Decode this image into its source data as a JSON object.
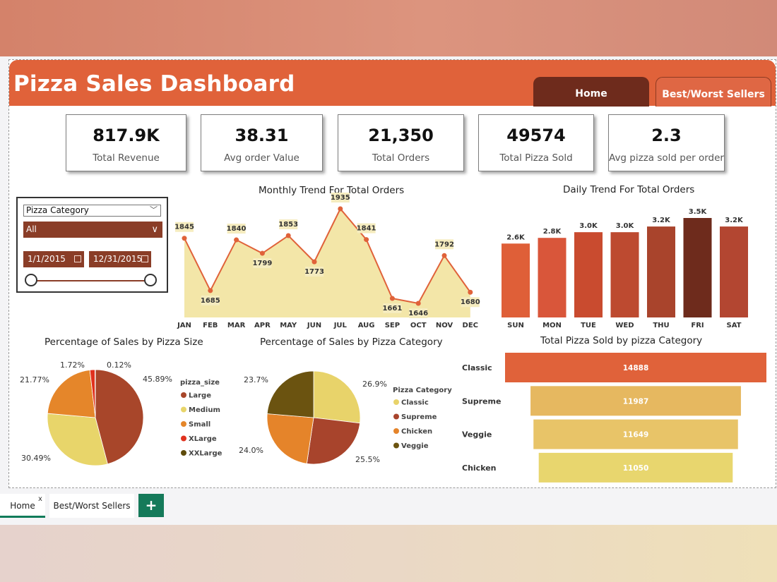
{
  "header": {
    "title": "Pizza Sales Dashboard",
    "nav": [
      {
        "label": "Home"
      },
      {
        "label": "Best/Worst Sellers"
      }
    ]
  },
  "kpis": [
    {
      "value": "817.9K",
      "label": "Total Revenue"
    },
    {
      "value": "38.31",
      "label": "Avg order Value"
    },
    {
      "value": "21,350",
      "label": "Total Orders"
    },
    {
      "value": "49574",
      "label": "Total Pizza Sold"
    },
    {
      "value": "2.3",
      "label": "Avg pizza sold per order"
    }
  ],
  "filters": {
    "category_label": "Pizza Category",
    "category_value": "All",
    "date_start": "1/1/2015",
    "date_end": "12/31/2015"
  },
  "tabs": [
    {
      "label": "Home",
      "close": "x"
    },
    {
      "label": "Best/Worst Sellers"
    },
    {
      "label": "+"
    }
  ],
  "chart_data": [
    {
      "type": "area",
      "title": "Monthly Trend For Total Orders",
      "categories": [
        "JAN",
        "FEB",
        "MAR",
        "APR",
        "MAY",
        "JUN",
        "JUL",
        "AUG",
        "SEP",
        "OCT",
        "NOV",
        "DEC"
      ],
      "values": [
        1845,
        1685,
        1840,
        1799,
        1853,
        1773,
        1935,
        1841,
        1661,
        1646,
        1792,
        1680
      ],
      "color_line": "#e0623a",
      "color_fill": "#f3e6a8"
    },
    {
      "type": "bar",
      "title": "Daily Trend For Total Orders",
      "categories": [
        "SUN",
        "MON",
        "TUE",
        "WED",
        "THU",
        "FRI",
        "SAT"
      ],
      "values": [
        2.6,
        2.8,
        3.0,
        3.0,
        3.2,
        3.5,
        3.2
      ],
      "labels": [
        "2.6K",
        "2.8K",
        "3.0K",
        "3.0K",
        "3.2K",
        "3.5K",
        "3.2K"
      ],
      "colors": [
        "#df5f38",
        "#d9563a",
        "#c94b2f",
        "#bd4a30",
        "#a9442c",
        "#6e2b1c",
        "#b34631"
      ]
    },
    {
      "type": "pie",
      "title": "Percentage of Sales by Pizza Size",
      "legend_title": "pizza_size",
      "slices": [
        {
          "name": "Large",
          "value": 45.89,
          "label": "45.89%",
          "color": "#a8462a"
        },
        {
          "name": "Medium",
          "value": 30.49,
          "label": "30.49%",
          "color": "#e8d56a"
        },
        {
          "name": "Small",
          "value": 21.77,
          "label": "21.77%",
          "color": "#e5862a"
        },
        {
          "name": "XLarge",
          "value": 1.72,
          "label": "1.72%",
          "color": "#e0321e"
        },
        {
          "name": "XXLarge",
          "value": 0.12,
          "label": "0.12%",
          "color": "#5e4b0b"
        }
      ]
    },
    {
      "type": "pie",
      "title": "Percentage of Sales by Pizza Category",
      "legend_title": "Pizza Category",
      "slices": [
        {
          "name": "Classic",
          "value": 26.9,
          "label": "26.9%",
          "color": "#e8d36a"
        },
        {
          "name": "Supreme",
          "value": 25.5,
          "label": "25.5%",
          "color": "#a8442c"
        },
        {
          "name": "Chicken",
          "value": 24.0,
          "label": "24.0%",
          "color": "#e5842a"
        },
        {
          "name": "Veggie",
          "value": 23.7,
          "label": "23.7%",
          "color": "#6b5310"
        }
      ]
    },
    {
      "type": "bar",
      "title": "Total Pizza Sold by pizza Category",
      "categories": [
        "Classic",
        "Supreme",
        "Veggie",
        "Chicken"
      ],
      "values": [
        14888,
        11987,
        11649,
        11050
      ],
      "colors": [
        "#e0623a",
        "#e6b860",
        "#e8c468",
        "#e8d66e"
      ]
    }
  ]
}
